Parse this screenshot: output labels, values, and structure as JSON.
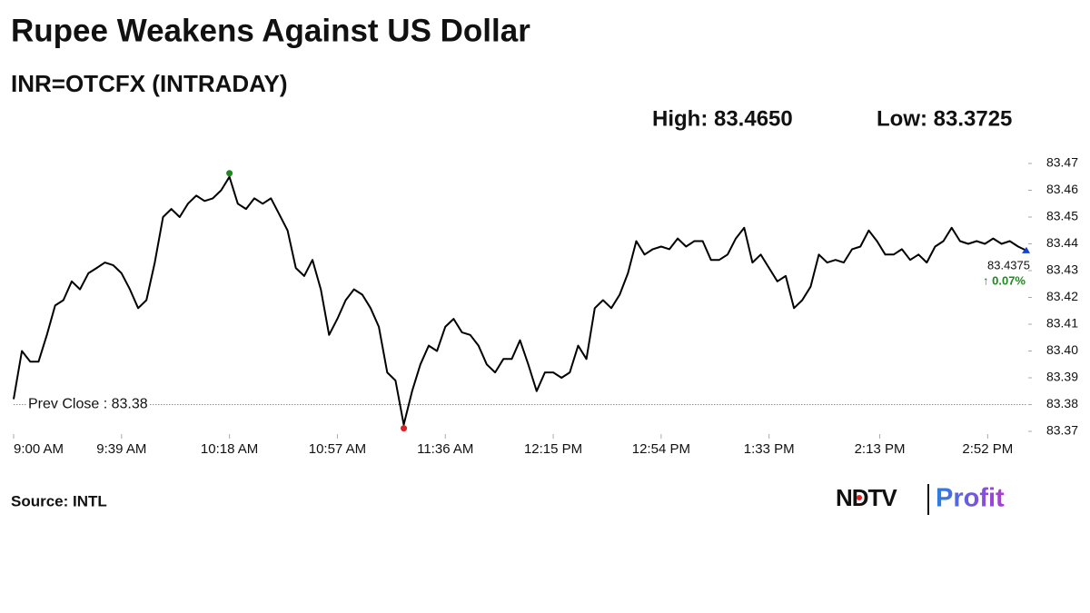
{
  "chart_data": {
    "type": "line",
    "title": "Rupee Weakens Against US Dollar",
    "subtitle": "INR=OTCFX (INTRADAY)",
    "high": {
      "label": "High: 83.4650",
      "value": 83.465,
      "x": "10:18 AM"
    },
    "low": {
      "label": "Low: 83.3725",
      "value": 83.3725,
      "x": "11:21 AM"
    },
    "prev_close": {
      "label": "Prev Close : 83.38",
      "value": 83.38
    },
    "last_value": 83.4375,
    "change_label": "↑ 0.07%",
    "color": "#000000",
    "x": [
      "9:00 AM",
      "9:03 AM",
      "9:06 AM",
      "9:09 AM",
      "9:12 AM",
      "9:15 AM",
      "9:18 AM",
      "9:21 AM",
      "9:24 AM",
      "9:27 AM",
      "9:30 AM",
      "9:33 AM",
      "9:36 AM",
      "9:39 AM",
      "9:42 AM",
      "9:45 AM",
      "9:48 AM",
      "9:51 AM",
      "9:54 AM",
      "9:57 AM",
      "10:00 AM",
      "10:03 AM",
      "10:06 AM",
      "10:09 AM",
      "10:12 AM",
      "10:15 AM",
      "10:18 AM",
      "10:21 AM",
      "10:24 AM",
      "10:27 AM",
      "10:30 AM",
      "10:33 AM",
      "10:36 AM",
      "10:39 AM",
      "10:42 AM",
      "10:45 AM",
      "10:48 AM",
      "10:51 AM",
      "10:54 AM",
      "10:57 AM",
      "11:00 AM",
      "11:03 AM",
      "11:06 AM",
      "11:09 AM",
      "11:12 AM",
      "11:15 AM",
      "11:18 AM",
      "11:21 AM",
      "11:24 AM",
      "11:27 AM",
      "11:30 AM",
      "11:33 AM",
      "11:36 AM",
      "11:39 AM",
      "11:42 AM",
      "11:45 AM",
      "11:48 AM",
      "11:51 AM",
      "11:54 AM",
      "11:57 AM",
      "12:00 PM",
      "12:03 PM",
      "12:06 PM",
      "12:09 PM",
      "12:12 PM",
      "12:15 PM",
      "12:18 PM",
      "12:21 PM",
      "12:24 PM",
      "12:27 PM",
      "12:30 PM",
      "12:33 PM",
      "12:36 PM",
      "12:39 PM",
      "12:42 PM",
      "12:45 PM",
      "12:48 PM",
      "12:51 PM",
      "12:54 PM",
      "12:57 PM",
      "1:00 PM",
      "1:03 PM",
      "1:06 PM",
      "1:09 PM",
      "1:12 PM",
      "1:15 PM",
      "1:18 PM",
      "1:21 PM",
      "1:24 PM",
      "1:27 PM",
      "1:30 PM",
      "1:33 PM",
      "1:36 PM",
      "1:39 PM",
      "1:42 PM",
      "1:45 PM",
      "1:48 PM",
      "1:51 PM",
      "1:54 PM",
      "1:57 PM",
      "2:00 PM",
      "2:03 PM",
      "2:06 PM",
      "2:09 PM",
      "2:12 PM",
      "2:15 PM",
      "2:18 PM",
      "2:21 PM",
      "2:24 PM",
      "2:27 PM",
      "2:30 PM",
      "2:33 PM",
      "2:36 PM",
      "2:39 PM",
      "2:42 PM",
      "2:45 PM",
      "2:48 PM",
      "2:51 PM",
      "2:54 PM",
      "2:57 PM",
      "3:00 PM",
      "3:03 PM",
      "3:06 PM"
    ],
    "values": [
      83.382,
      83.4,
      83.396,
      83.396,
      83.406,
      83.417,
      83.419,
      83.426,
      83.423,
      83.429,
      83.431,
      83.433,
      83.432,
      83.429,
      83.423,
      83.416,
      83.419,
      83.433,
      83.45,
      83.453,
      83.45,
      83.455,
      83.458,
      83.456,
      83.457,
      83.46,
      83.465,
      83.455,
      83.453,
      83.457,
      83.455,
      83.457,
      83.451,
      83.445,
      83.431,
      83.428,
      83.434,
      83.423,
      83.406,
      83.412,
      83.419,
      83.423,
      83.421,
      83.416,
      83.409,
      83.392,
      83.389,
      83.3725,
      83.385,
      83.395,
      83.402,
      83.4,
      83.409,
      83.412,
      83.407,
      83.406,
      83.402,
      83.395,
      83.392,
      83.397,
      83.397,
      83.404,
      83.395,
      83.385,
      83.392,
      83.392,
      83.39,
      83.392,
      83.402,
      83.397,
      83.416,
      83.419,
      83.416,
      83.421,
      83.429,
      83.441,
      83.436,
      83.438,
      83.439,
      83.438,
      83.442,
      83.439,
      83.441,
      83.441,
      83.434,
      83.434,
      83.436,
      83.442,
      83.446,
      83.433,
      83.436,
      83.431,
      83.426,
      83.428,
      83.416,
      83.419,
      83.424,
      83.436,
      83.433,
      83.434,
      83.433,
      83.438,
      83.439,
      83.445,
      83.441,
      83.436,
      83.436,
      83.438,
      83.434,
      83.436,
      83.433,
      83.439,
      83.441,
      83.446,
      83.441,
      83.44,
      83.441,
      83.44,
      83.442,
      83.44,
      83.441,
      83.439,
      83.4375
    ],
    "xlim": [
      "9:00 AM",
      "3:06 PM"
    ],
    "xticks": [
      "9:00 AM",
      "9:39 AM",
      "10:18 AM",
      "10:57 AM",
      "11:36 AM",
      "12:15 PM",
      "12:54 PM",
      "1:33 PM",
      "2:13 PM",
      "2:52 PM"
    ],
    "ylim": [
      83.37,
      83.47
    ],
    "yticks": [
      83.37,
      83.38,
      83.39,
      {
        "value": 83.4,
        "label": "83.40"
      },
      83.41,
      83.42,
      83.43,
      83.44,
      83.45,
      83.46,
      83.47
    ],
    "grid": false,
    "source": "Source: INTL",
    "logo": {
      "left": "NDTV",
      "right": "Profit"
    }
  }
}
